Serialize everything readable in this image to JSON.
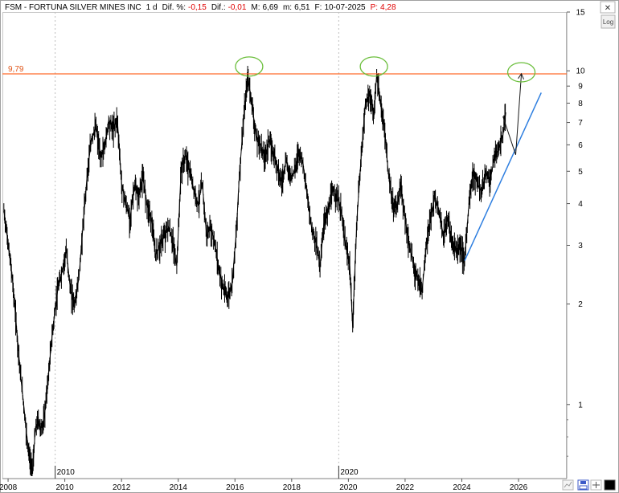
{
  "header": {
    "symbol": "FSM",
    "name": "FORTUNA SILVER MINES INC",
    "interval": "1 d",
    "dif_pct_label": "Dif. %:",
    "dif_pct": "-0,15",
    "dif_label": "Dif.:",
    "dif": "-0,01",
    "max_label": "M:",
    "max": "6,69",
    "min_label": "m:",
    "min": "6,51",
    "date_label": "F:",
    "date": "10-07-2025",
    "price_label": "P:",
    "price": "4,28"
  },
  "controls": {
    "log_label": "Log",
    "close_glyph": "✕"
  },
  "colors": {
    "resistance_line": "#ff6a2a",
    "resistance_label": "#e0561a",
    "ellipse": "#6cbf3d",
    "trend_line": "#2f7fe0",
    "price_series": "#000000",
    "negative_value": "#e00000",
    "grid": "#c0c0c0"
  },
  "chart_data": {
    "type": "line",
    "title": "FSM - FORTUNA SILVER MINES INC",
    "y_scale": "log",
    "ylim": [
      0.6,
      15
    ],
    "xlim": [
      2007.8,
      2027.7
    ],
    "y_ticks": [
      1,
      2,
      3,
      4,
      5,
      6,
      7,
      8,
      9,
      10,
      15
    ],
    "x_ticks": [
      2008,
      2010,
      2012,
      2014,
      2016,
      2018,
      2020,
      2022,
      2024,
      2026
    ],
    "decade_markers": [
      2010,
      2020
    ],
    "resistance": {
      "value": 9.79,
      "label": "9,79"
    },
    "series": [
      {
        "x": [
          2007.85,
          2007.95,
          2008.05,
          2008.15,
          2008.25,
          2008.35,
          2008.45,
          2008.55,
          2008.65,
          2008.75,
          2008.85,
          2008.9,
          2008.95,
          2009.05,
          2009.15,
          2009.25,
          2009.35,
          2009.45,
          2009.55,
          2009.65,
          2009.75,
          2009.9,
          2010.05,
          2010.2,
          2010.35,
          2010.5,
          2010.65,
          2010.8,
          2010.95,
          2011.1,
          2011.25,
          2011.4,
          2011.55,
          2011.7,
          2011.85,
          2012.0,
          2012.15,
          2012.3,
          2012.45,
          2012.6,
          2012.75,
          2012.9,
          2013.05,
          2013.2,
          2013.35,
          2013.5,
          2013.65,
          2013.8,
          2013.95,
          2014.1,
          2014.25,
          2014.4,
          2014.55,
          2014.7,
          2014.85,
          2015.0,
          2015.15,
          2015.3,
          2015.45,
          2015.6,
          2015.75,
          2015.9,
          2016.05,
          2016.15,
          2016.3,
          2016.45,
          2016.6,
          2016.75,
          2016.9,
          2017.05,
          2017.2,
          2017.35,
          2017.5,
          2017.65,
          2017.8,
          2017.95,
          2018.1,
          2018.25,
          2018.4,
          2018.55,
          2018.7,
          2018.85,
          2019.0,
          2019.15,
          2019.3,
          2019.45,
          2019.6,
          2019.75,
          2019.9,
          2020.05,
          2020.15,
          2020.2,
          2020.3,
          2020.45,
          2020.6,
          2020.75,
          2020.9,
          2021.0,
          2021.1,
          2021.25,
          2021.4,
          2021.55,
          2021.7,
          2021.85,
          2022.0,
          2022.15,
          2022.3,
          2022.45,
          2022.6,
          2022.75,
          2022.9,
          2023.05,
          2023.2,
          2023.35,
          2023.5,
          2023.65,
          2023.8,
          2023.95,
          2024.1,
          2024.25,
          2024.4,
          2024.55,
          2024.7,
          2024.85,
          2025.0,
          2025.15,
          2025.3,
          2025.45,
          2025.55
        ],
        "y": [
          3.8,
          3.3,
          2.8,
          2.4,
          1.9,
          1.5,
          1.2,
          1.0,
          0.82,
          0.7,
          0.62,
          0.7,
          0.82,
          0.9,
          0.85,
          0.88,
          1.05,
          1.3,
          1.6,
          1.9,
          2.2,
          2.5,
          2.9,
          2.2,
          2.0,
          2.4,
          3.5,
          5.0,
          6.3,
          6.8,
          5.5,
          5.9,
          7.1,
          6.7,
          7.2,
          4.6,
          4.0,
          3.6,
          4.5,
          4.2,
          4.8,
          4.0,
          3.6,
          2.8,
          3.0,
          3.2,
          3.4,
          3.1,
          2.6,
          5.0,
          5.6,
          5.0,
          4.4,
          4.0,
          4.6,
          3.2,
          3.4,
          3.0,
          2.5,
          2.2,
          2.1,
          2.3,
          3.3,
          4.8,
          7.0,
          9.6,
          8.0,
          6.3,
          6.0,
          5.5,
          6.2,
          5.7,
          5.2,
          4.6,
          5.4,
          4.8,
          5.0,
          5.8,
          5.3,
          4.2,
          3.4,
          3.1,
          2.6,
          3.6,
          3.8,
          4.4,
          4.2,
          3.8,
          3.0,
          2.6,
          1.7,
          2.2,
          3.6,
          5.5,
          8.0,
          8.5,
          7.3,
          9.8,
          8.2,
          7.0,
          5.0,
          4.0,
          3.9,
          4.5,
          3.6,
          3.0,
          2.6,
          2.4,
          2.2,
          3.0,
          3.6,
          4.2,
          3.8,
          3.2,
          3.6,
          3.1,
          2.9,
          3.0,
          2.7,
          4.0,
          5.0,
          4.6,
          4.3,
          5.0,
          4.7,
          5.5,
          5.8,
          6.4,
          7.5
        ]
      }
    ],
    "annotations": [
      {
        "type": "trendline",
        "x": [
          2024.1,
          2026.8
        ],
        "y": [
          2.7,
          8.6
        ]
      },
      {
        "type": "arrow",
        "x": [
          2025.45,
          2025.9,
          2026.1
        ],
        "y": [
          7.3,
          5.6,
          9.8
        ]
      },
      {
        "type": "ellipse",
        "x": 2016.5,
        "y": 10.3
      },
      {
        "type": "ellipse",
        "x": 2020.9,
        "y": 10.3
      },
      {
        "type": "ellipse",
        "x": 2026.1,
        "y": 9.9
      }
    ]
  }
}
